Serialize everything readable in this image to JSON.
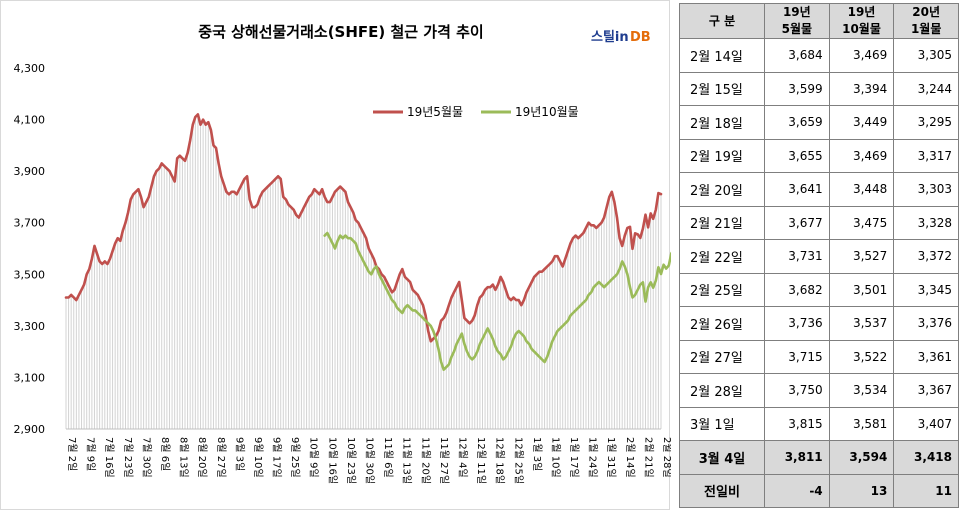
{
  "brand": {
    "logo_text": "스틸in",
    "logo_suffix": "DB"
  },
  "chart_data": {
    "type": "line",
    "title": "중국 상해선물거래소(SHFE)  철근 가격 추이",
    "ylim": [
      2900,
      4300
    ],
    "yticks": [
      2900,
      3100,
      3300,
      3500,
      3700,
      3900,
      4100,
      4300
    ],
    "ytick_labels": [
      "2,900",
      "3,100",
      "3,300",
      "3,500",
      "3,700",
      "3,900",
      "4,100",
      "4,300"
    ],
    "xtick_labels": [
      "7월 2일",
      "7월 9일",
      "7월 16일",
      "7월 23일",
      "7월 30일",
      "8월 6일",
      "8월 13일",
      "8월 20일",
      "8월 27일",
      "9월 3일",
      "9월 10일",
      "9월 17일",
      "9월 25일",
      "10월 9일",
      "10월 16일",
      "10월 23일",
      "10월 30일",
      "11월 6일",
      "11월 13일",
      "11월 20일",
      "11월 27일",
      "12월 4일",
      "12월 11일",
      "12월 18일",
      "12월 25일",
      "1월 3일",
      "1월 10일",
      "1월 17일",
      "1월 24일",
      "1월 31일",
      "2월 14일",
      "2월 21일",
      "2월 28일"
    ],
    "legend_position": "top-right",
    "series": [
      {
        "name": "19년5월물",
        "color": "#c0504d",
        "start_index": 0,
        "values": [
          3410,
          3410,
          3420,
          3410,
          3400,
          3420,
          3440,
          3460,
          3500,
          3520,
          3560,
          3610,
          3580,
          3550,
          3540,
          3550,
          3540,
          3560,
          3590,
          3620,
          3640,
          3630,
          3670,
          3700,
          3740,
          3790,
          3810,
          3820,
          3830,
          3800,
          3760,
          3780,
          3800,
          3840,
          3880,
          3900,
          3910,
          3930,
          3920,
          3910,
          3900,
          3880,
          3860,
          3950,
          3960,
          3950,
          3940,
          3970,
          4020,
          4080,
          4110,
          4120,
          4080,
          4100,
          4080,
          4090,
          4060,
          4000,
          3990,
          3930,
          3880,
          3850,
          3820,
          3810,
          3820,
          3820,
          3810,
          3830,
          3850,
          3870,
          3880,
          3790,
          3760,
          3760,
          3770,
          3800,
          3820,
          3830,
          3840,
          3850,
          3860,
          3870,
          3880,
          3870,
          3800,
          3790,
          3770,
          3760,
          3750,
          3730,
          3720,
          3740,
          3760,
          3780,
          3800,
          3810,
          3830,
          3820,
          3810,
          3830,
          3800,
          3780,
          3780,
          3800,
          3820,
          3830,
          3840,
          3830,
          3820,
          3780,
          3760,
          3740,
          3710,
          3700,
          3680,
          3660,
          3640,
          3600,
          3580,
          3560,
          3530,
          3520,
          3500,
          3490,
          3470,
          3450,
          3430,
          3440,
          3470,
          3500,
          3520,
          3490,
          3480,
          3470,
          3440,
          3430,
          3420,
          3400,
          3380,
          3340,
          3280,
          3240,
          3250,
          3260,
          3280,
          3320,
          3330,
          3350,
          3380,
          3410,
          3430,
          3450,
          3470,
          3400,
          3330,
          3320,
          3310,
          3320,
          3340,
          3380,
          3410,
          3420,
          3440,
          3450,
          3450,
          3460,
          3440,
          3460,
          3490,
          3470,
          3440,
          3410,
          3400,
          3410,
          3400,
          3400,
          3380,
          3400,
          3430,
          3450,
          3470,
          3490,
          3500,
          3510,
          3510,
          3520,
          3530,
          3540,
          3550,
          3570,
          3570,
          3550,
          3530,
          3560,
          3590,
          3620,
          3640,
          3650,
          3640,
          3650,
          3660,
          3680,
          3700,
          3690,
          3690,
          3680,
          3690,
          3700,
          3720,
          3760,
          3800,
          3820,
          3780,
          3720,
          3640,
          3610,
          3650,
          3680,
          3684,
          3599,
          3659,
          3655,
          3641,
          3677,
          3731,
          3682,
          3736,
          3715,
          3750,
          3815,
          3811
        ]
      },
      {
        "name": "19년10월물",
        "color": "#9bbb59",
        "start_index": 100,
        "values": [
          3650,
          3660,
          3640,
          3620,
          3600,
          3630,
          3650,
          3640,
          3650,
          3640,
          3640,
          3630,
          3620,
          3590,
          3570,
          3550,
          3530,
          3510,
          3500,
          3520,
          3530,
          3500,
          3480,
          3460,
          3440,
          3420,
          3400,
          3390,
          3370,
          3360,
          3350,
          3370,
          3380,
          3370,
          3360,
          3360,
          3350,
          3340,
          3330,
          3320,
          3310,
          3300,
          3280,
          3250,
          3210,
          3160,
          3130,
          3140,
          3150,
          3180,
          3200,
          3230,
          3250,
          3270,
          3230,
          3200,
          3180,
          3170,
          3180,
          3200,
          3230,
          3250,
          3270,
          3290,
          3270,
          3250,
          3220,
          3200,
          3190,
          3170,
          3180,
          3200,
          3220,
          3250,
          3270,
          3280,
          3270,
          3260,
          3240,
          3230,
          3210,
          3200,
          3190,
          3180,
          3170,
          3160,
          3180,
          3210,
          3240,
          3260,
          3280,
          3290,
          3300,
          3310,
          3320,
          3340,
          3350,
          3360,
          3370,
          3380,
          3390,
          3400,
          3420,
          3430,
          3450,
          3460,
          3470,
          3460,
          3450,
          3460,
          3470,
          3480,
          3490,
          3500,
          3520,
          3550,
          3530,
          3500,
          3450,
          3410,
          3420,
          3440,
          3460,
          3469,
          3394,
          3449,
          3469,
          3448,
          3475,
          3527,
          3501,
          3537,
          3522,
          3534,
          3581,
          3594
        ]
      }
    ]
  },
  "table": {
    "headers": [
      {
        "top": "구  분",
        "bottom": ""
      },
      {
        "top": "19년",
        "bottom": "5월물"
      },
      {
        "top": "19년",
        "bottom": "10월물"
      },
      {
        "top": "20년",
        "bottom": "1월물"
      }
    ],
    "rows": [
      {
        "date": "2월 14일",
        "m5": "3,684",
        "m10": "3,469",
        "m1": "3,305"
      },
      {
        "date": "2월 15일",
        "m5": "3,599",
        "m10": "3,394",
        "m1": "3,244"
      },
      {
        "date": "2월 18일",
        "m5": "3,659",
        "m10": "3,449",
        "m1": "3,295"
      },
      {
        "date": "2월 19일",
        "m5": "3,655",
        "m10": "3,469",
        "m1": "3,317"
      },
      {
        "date": "2월 20일",
        "m5": "3,641",
        "m10": "3,448",
        "m1": "3,303"
      },
      {
        "date": "2월 21일",
        "m5": "3,677",
        "m10": "3,475",
        "m1": "3,328"
      },
      {
        "date": "2월 22일",
        "m5": "3,731",
        "m10": "3,527",
        "m1": "3,372"
      },
      {
        "date": "2월 25일",
        "m5": "3,682",
        "m10": "3,501",
        "m1": "3,345"
      },
      {
        "date": "2월 26일",
        "m5": "3,736",
        "m10": "3,537",
        "m1": "3,376"
      },
      {
        "date": "2월 27일",
        "m5": "3,715",
        "m10": "3,522",
        "m1": "3,361"
      },
      {
        "date": "2월 28일",
        "m5": "3,750",
        "m10": "3,534",
        "m1": "3,367"
      },
      {
        "date": "3월 1일",
        "m5": "3,815",
        "m10": "3,581",
        "m1": "3,407"
      }
    ],
    "highlight_row": {
      "date": "3월 4일",
      "m5": "3,811",
      "m10": "3,594",
      "m1": "3,418"
    },
    "diff_row": {
      "label": "전일비",
      "m5": "-4",
      "m10": "13",
      "m1": "11"
    }
  }
}
